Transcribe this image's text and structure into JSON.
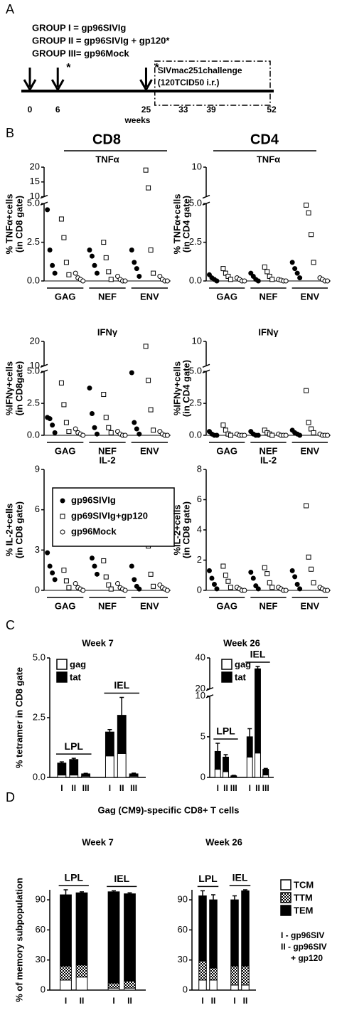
{
  "panel_labels": [
    "A",
    "B",
    "C",
    "D"
  ],
  "timeline": {
    "groups": [
      "GROUP I = gp96SIVIg",
      "GROUP II = gp96SIVIg + gp120*",
      "GROUP III= gp96Mock"
    ],
    "x": [
      0,
      6,
      25,
      33,
      39,
      52
    ],
    "xlim": [
      0,
      52
    ],
    "arrows": [
      0,
      6,
      25
    ],
    "stars": [
      6,
      25
    ],
    "star": "*",
    "xlabel": "weeks",
    "challenge": [
      "SIVmac251challenge",
      "(120TCID50 i.r.)"
    ]
  },
  "panel_b": {
    "column_headers": [
      "CD8",
      "CD4"
    ]
  },
  "panel_d_title": "Gag (CM9)-specific CD8+ T cells",
  "chart_data": [
    {
      "type": "dotplot",
      "title": "TNFα",
      "ylabel": [
        "% TNFα+cells",
        "(in CD8 gate)"
      ],
      "categories": [
        "GAG",
        "NEF",
        "ENV"
      ],
      "ylim": [
        0,
        20
      ],
      "ybreak": [
        5,
        10
      ],
      "yticks": [
        {
          "value": 0,
          "label": "0.0"
        },
        2.5,
        {
          "value": 5,
          "label": "5.0"
        },
        10,
        15,
        20
      ],
      "series": [
        {
          "marker": "circle",
          "color": "#000000",
          "values": [
            [
              4.6,
              2.0,
              1.0,
              0.5
            ],
            [
              2.0,
              1.6,
              1.0,
              0.5
            ],
            [
              2.0,
              1.2,
              0.8,
              0.3
            ]
          ]
        },
        {
          "marker": "square",
          "color": "#ffffff",
          "values": [
            [
              4.0,
              2.8,
              1.2,
              0.4
            ],
            [
              2.5,
              1.5,
              0.6,
              0.1
            ],
            [
              19,
              13,
              2.0,
              0.5
            ]
          ]
        },
        {
          "marker": "circle",
          "color": "#ffffff",
          "values": [
            [
              0.5,
              0.2,
              0.1,
              0
            ],
            [
              0.3,
              0.1,
              0,
              0
            ],
            [
              0.3,
              0.1,
              0,
              0
            ]
          ]
        }
      ]
    },
    {
      "type": "dotplot",
      "title": "TNFα",
      "ylabel": [
        "% TNFα+cells",
        "(in CD4 gate)"
      ],
      "categories": [
        "GAG",
        "NEF",
        "ENV"
      ],
      "ylim": [
        0,
        10
      ],
      "ybreak": [
        5,
        9
      ],
      "yticks": [
        {
          "value": 0,
          "label": "0.0"
        },
        2.5,
        {
          "value": 5,
          "label": "5.0"
        },
        10
      ],
      "series": [
        {
          "marker": "circle",
          "color": "#000000",
          "values": [
            [
              0.4,
              0.2,
              0.1,
              0
            ],
            [
              0.5,
              0.3,
              0.1,
              0
            ],
            [
              1.2,
              0.8,
              0.5,
              0.2
            ]
          ]
        },
        {
          "marker": "square",
          "color": "#ffffff",
          "values": [
            [
              0.8,
              0.5,
              0.3,
              0.1
            ],
            [
              0.9,
              0.6,
              0.3,
              0.1
            ],
            [
              4.9,
              4.4,
              3.0,
              1.2
            ]
          ]
        },
        {
          "marker": "circle",
          "color": "#ffffff",
          "values": [
            [
              0.2,
              0.1,
              0,
              0
            ],
            [
              0.1,
              0.05,
              0,
              0
            ],
            [
              0.2,
              0.1,
              0,
              0
            ]
          ]
        }
      ]
    },
    {
      "type": "dotplot",
      "title": "IFNγ",
      "ylabel": [
        "%IFNγ+cells",
        "(in CD8gate)"
      ],
      "categories": [
        "GAG",
        "NEF",
        "ENV"
      ],
      "ylim": [
        0,
        20
      ],
      "ybreak": [
        5,
        10
      ],
      "yticks": [
        {
          "value": 0,
          "label": "0.0"
        },
        2.5,
        {
          "value": 5,
          "label": "5.0"
        },
        10,
        20
      ],
      "series": [
        {
          "marker": "circle",
          "color": "#000000",
          "values": [
            [
              1.4,
              1.3,
              0.8,
              0.2
            ],
            [
              3.7,
              1.7,
              0.6,
              0.1
            ],
            [
              4.9,
              1.0,
              0.5,
              0.1
            ]
          ]
        },
        {
          "marker": "square",
          "color": "#ffffff",
          "values": [
            [
              4.1,
              2.4,
              1.0,
              0.3
            ],
            [
              3.2,
              1.4,
              0.6,
              0.2
            ],
            [
              18,
              4.3,
              2.0,
              0.4
            ]
          ]
        },
        {
          "marker": "circle",
          "color": "#ffffff",
          "values": [
            [
              0.5,
              0.2,
              0.1,
              0
            ],
            [
              0.3,
              0.1,
              0,
              0
            ],
            [
              0.3,
              0.1,
              0,
              0
            ]
          ]
        }
      ]
    },
    {
      "type": "dotplot",
      "title": "IFNγ",
      "ylabel": [
        "%IFNγ+cells",
        "(in CD4 gate)"
      ],
      "categories": [
        "GAG",
        "NEF",
        "ENV"
      ],
      "ylim": [
        0,
        10
      ],
      "ybreak": [
        5,
        9
      ],
      "yticks": [
        {
          "value": 0,
          "label": "0.0"
        },
        2.5,
        {
          "value": 5,
          "label": "5.0"
        },
        10
      ],
      "series": [
        {
          "marker": "circle",
          "color": "#000000",
          "values": [
            [
              0.3,
              0.1,
              0,
              0
            ],
            [
              0.3,
              0.1,
              0,
              0
            ],
            [
              0.4,
              0.2,
              0.1,
              0
            ]
          ]
        },
        {
          "marker": "square",
          "color": "#ffffff",
          "values": [
            [
              0.8,
              0.4,
              0.1,
              0
            ],
            [
              0.4,
              0.2,
              0.1,
              0
            ],
            [
              3.5,
              1.0,
              0.5,
              0.2
            ]
          ]
        },
        {
          "marker": "circle",
          "color": "#ffffff",
          "values": [
            [
              0.1,
              0,
              0,
              0
            ],
            [
              0.1,
              0,
              0,
              0
            ],
            [
              0.1,
              0,
              0,
              0
            ]
          ]
        }
      ]
    },
    {
      "type": "dotplot",
      "title": "IL-2",
      "ylabel": [
        "% IL-2+cells",
        "(in CD8 gate)"
      ],
      "categories": [
        "GAG",
        "NEF",
        "ENV"
      ],
      "ylim": [
        0,
        9
      ],
      "yticks": [
        0,
        3,
        6,
        9
      ],
      "legend": "upper right",
      "series": [
        {
          "name": "gp96SIVIg",
          "marker": "circle",
          "color": "#000000",
          "values": [
            [
              2.8,
              1.8,
              1.3,
              0.8
            ],
            [
              3.6,
              2.4,
              1.8,
              1.2
            ],
            [
              1.8,
              0.8,
              0.3,
              0.1
            ]
          ]
        },
        {
          "name": "gp69SIVIg+gp120",
          "marker": "square",
          "color": "#ffffff",
          "values": [
            [
              3.8,
              1.5,
              0.7,
              0.2
            ],
            [
              2.2,
              1.0,
              0.4,
              0.1
            ],
            [
              4.1,
              3.3,
              1.2,
              0.3
            ]
          ]
        },
        {
          "name": "gp96Mock",
          "marker": "circle",
          "color": "#ffffff",
          "values": [
            [
              0.5,
              0.2,
              0.1,
              0
            ],
            [
              0.5,
              0.2,
              0.1,
              0
            ],
            [
              0.4,
              0.2,
              0.1,
              0
            ]
          ]
        }
      ]
    },
    {
      "type": "dotplot",
      "title": "IL-2",
      "ylabel": [
        "%IL-2+cells",
        "(in CD8 gate)"
      ],
      "categories": [
        "GAG",
        "NEF",
        "ENV"
      ],
      "ylim": [
        0,
        8
      ],
      "yticks": [
        0,
        2,
        4,
        6,
        8
      ],
      "series": [
        {
          "marker": "circle",
          "color": "#000000",
          "values": [
            [
              1.3,
              0.8,
              0.4,
              0.1
            ],
            [
              1.2,
              0.8,
              0.3,
              0.1
            ],
            [
              1.3,
              0.9,
              0.4,
              0.1
            ]
          ]
        },
        {
          "marker": "square",
          "color": "#ffffff",
          "values": [
            [
              1.6,
              1.0,
              0.6,
              0.2
            ],
            [
              1.5,
              1.1,
              0.5,
              0.2
            ],
            [
              5.6,
              2.2,
              1.4,
              0.5
            ]
          ]
        },
        {
          "marker": "circle",
          "color": "#ffffff",
          "values": [
            [
              0.2,
              0.1,
              0,
              0
            ],
            [
              0.2,
              0.1,
              0,
              0
            ],
            [
              0.2,
              0.1,
              0,
              0
            ]
          ]
        }
      ]
    },
    {
      "type": "stacked_bar",
      "title": "Week 7",
      "ylabel": [
        "% tetramer in CD8 gate"
      ],
      "ylim": [
        0,
        5
      ],
      "yticks": [
        {
          "value": 0,
          "label": "0.0"
        },
        2.5,
        {
          "value": 5,
          "label": "5.0"
        }
      ],
      "legend": "upper left",
      "groups": [
        {
          "name": "LPL",
          "categories": [
            "I",
            "II",
            "III"
          ]
        },
        {
          "name": "IEL",
          "categories": [
            "I",
            "II",
            "III"
          ]
        }
      ],
      "series": [
        {
          "name": "gag",
          "color": "#ffffff",
          "values": [
            0.1,
            0.1,
            0.05,
            0.9,
            1.0,
            0.05
          ]
        },
        {
          "name": "tat",
          "color": "#000000",
          "values": [
            0.5,
            0.65,
            0.1,
            1.0,
            1.6,
            0.1
          ],
          "errors": [
            0.05,
            0.05,
            0.02,
            0.1,
            0.75,
            0.03
          ]
        }
      ]
    },
    {
      "type": "stacked_bar",
      "title": "Week 26",
      "ylim": [
        0,
        40
      ],
      "ybreak": [
        10,
        20
      ],
      "yticks": [
        0,
        5,
        10,
        20,
        40
      ],
      "legend": "upper center",
      "groups": [
        {
          "name": "LPL",
          "categories": [
            "I",
            "II",
            "III"
          ]
        },
        {
          "name": "IEL",
          "categories": [
            "I",
            "II",
            "III"
          ]
        }
      ],
      "series": [
        {
          "name": "gag",
          "color": "#ffffff",
          "values": [
            1.0,
            0.7,
            0.1,
            2.5,
            3.0,
            0.3
          ]
        },
        {
          "name": "tat",
          "color": "#000000",
          "values": [
            2.2,
            1.8,
            0.1,
            2.5,
            30,
            0.7
          ],
          "errors": [
            1.0,
            0.3,
            0.05,
            1.0,
            1.5,
            0.1
          ]
        }
      ]
    },
    {
      "type": "stacked_bar",
      "title": "Week 7",
      "ylabel": [
        "% of memory subpopulation"
      ],
      "ylim": [
        0,
        100
      ],
      "yticks": [
        0,
        30,
        60,
        90
      ],
      "groups": [
        {
          "name": "LPL",
          "categories": [
            "I",
            "II"
          ]
        },
        {
          "name": "IEL",
          "categories": [
            "I",
            "II"
          ]
        }
      ],
      "series": [
        {
          "color": "#ffffff",
          "values": [
            10,
            13,
            2,
            2
          ]
        },
        {
          "pattern": "checker",
          "color": "#000000",
          "values": [
            14,
            12,
            5,
            7
          ]
        },
        {
          "color": "#000000",
          "values": [
            71,
            72,
            91,
            87
          ],
          "errors": [
            5,
            1,
            1,
            1
          ]
        }
      ]
    },
    {
      "type": "stacked_bar",
      "title": "Week 26",
      "ylim": [
        0,
        100
      ],
      "yticks": [
        0,
        30,
        60,
        90
      ],
      "legend": "right",
      "annotation": [
        "I - gp96SIV",
        "II - gp96SIV",
        "+ gp120"
      ],
      "groups": [
        {
          "name": "LPL",
          "categories": [
            "I",
            "II"
          ]
        },
        {
          "name": "IEL",
          "categories": [
            "I",
            "II"
          ]
        }
      ],
      "series": [
        {
          "name": "TCM",
          "color": "#ffffff",
          "values": [
            10,
            10,
            5,
            5
          ]
        },
        {
          "name": "TTM",
          "pattern": "checker",
          "color": "#000000",
          "values": [
            19,
            12,
            19,
            19
          ]
        },
        {
          "name": "TEM",
          "color": "#000000",
          "values": [
            65,
            68,
            66,
            75
          ],
          "errors": [
            5,
            5,
            4,
            1
          ]
        }
      ]
    }
  ]
}
